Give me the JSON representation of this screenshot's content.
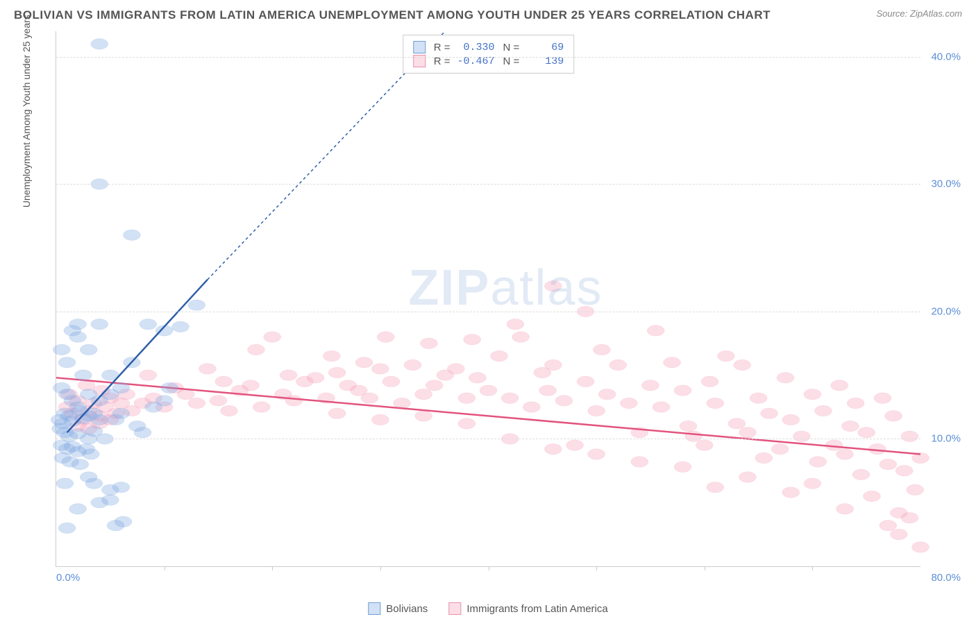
{
  "title": "BOLIVIAN VS IMMIGRANTS FROM LATIN AMERICA UNEMPLOYMENT AMONG YOUTH UNDER 25 YEARS CORRELATION CHART",
  "source": "Source: ZipAtlas.com",
  "ylabel": "Unemployment Among Youth under 25 years",
  "watermark_a": "ZIP",
  "watermark_b": "atlas",
  "chart": {
    "type": "scatter",
    "xlim": [
      0,
      80
    ],
    "ylim": [
      0,
      42
    ],
    "y_ticks": [
      10,
      20,
      30,
      40
    ],
    "y_tick_labels": [
      "10.0%",
      "20.0%",
      "30.0%",
      "40.0%"
    ],
    "x_ticks": [
      0,
      20,
      40,
      60,
      80
    ],
    "x_tick_labels_shown": {
      "first": "0.0%",
      "last": "80.0%"
    },
    "x_minor_ticks": [
      10,
      20,
      30,
      40,
      50,
      60,
      70
    ],
    "background_color": "#ffffff",
    "grid_color": "#dddddd",
    "axis_color": "#cccccc",
    "tick_label_color": "#5b8fd6",
    "series": [
      {
        "name": "Bolivians",
        "marker_fill": "rgba(130,170,225,0.35)",
        "marker_stroke": "#6f9fd8",
        "marker_radius": 8,
        "trend_color": "#2e5fa8",
        "trend_width": 2.5,
        "trend_solid": {
          "x1": 1,
          "y1": 10.5,
          "x2": 14,
          "y2": 22.5
        },
        "trend_dash": {
          "x1": 14,
          "y1": 22.5,
          "x2": 36,
          "y2": 42
        },
        "R": "0.330",
        "N": "69",
        "points": [
          [
            4,
            41
          ],
          [
            4,
            30
          ],
          [
            7,
            26
          ],
          [
            2,
            19
          ],
          [
            1.5,
            18.5
          ],
          [
            0.5,
            17
          ],
          [
            2,
            18
          ],
          [
            3,
            17
          ],
          [
            4,
            19
          ],
          [
            8.5,
            19
          ],
          [
            10,
            18.5
          ],
          [
            11.5,
            18.8
          ],
          [
            13,
            20.5
          ],
          [
            7,
            16
          ],
          [
            5,
            15
          ],
          [
            2.5,
            15
          ],
          [
            1,
            16
          ],
          [
            0.5,
            14
          ],
          [
            1,
            13.5
          ],
          [
            1.5,
            13
          ],
          [
            2,
            12.5
          ],
          [
            0.8,
            12
          ],
          [
            1.2,
            11.8
          ],
          [
            2.2,
            12.2
          ],
          [
            0.3,
            11.5
          ],
          [
            0.6,
            11.2
          ],
          [
            1.5,
            11.4
          ],
          [
            2.5,
            11.6
          ],
          [
            3,
            11.8
          ],
          [
            3.5,
            12
          ],
          [
            4,
            11.5
          ],
          [
            0.4,
            10.8
          ],
          [
            0.8,
            10.5
          ],
          [
            1.2,
            10.2
          ],
          [
            2,
            10.4
          ],
          [
            3,
            10
          ],
          [
            3.5,
            10.6
          ],
          [
            4.5,
            10
          ],
          [
            0.5,
            9.5
          ],
          [
            1,
            9.2
          ],
          [
            1.5,
            9.4
          ],
          [
            2,
            9
          ],
          [
            2.8,
            9.2
          ],
          [
            3.2,
            8.8
          ],
          [
            0.6,
            8.5
          ],
          [
            1.3,
            8.2
          ],
          [
            2.2,
            8
          ],
          [
            3,
            13.5
          ],
          [
            4,
            13
          ],
          [
            5,
            13.5
          ],
          [
            6,
            14
          ],
          [
            3,
            7
          ],
          [
            3.5,
            6.5
          ],
          [
            5,
            6
          ],
          [
            0.8,
            6.5
          ],
          [
            2,
            4.5
          ],
          [
            4,
            5
          ],
          [
            5,
            5.2
          ],
          [
            6,
            6.2
          ],
          [
            1,
            3
          ],
          [
            5.5,
            3.2
          ],
          [
            6.2,
            3.5
          ],
          [
            9,
            12.5
          ],
          [
            10,
            13
          ],
          [
            7.5,
            11
          ],
          [
            8,
            10.5
          ],
          [
            6,
            12
          ],
          [
            5.5,
            11.5
          ],
          [
            10.5,
            14
          ]
        ]
      },
      {
        "name": "Immigrants from Latin America",
        "marker_fill": "rgba(245,160,185,0.35)",
        "marker_stroke": "#e990ad",
        "marker_radius": 8,
        "trend_color": "#e3537e",
        "trend_width": 2.5,
        "trend_solid": {
          "x1": 0,
          "y1": 14.8,
          "x2": 80,
          "y2": 8.8
        },
        "R": "-0.467",
        "N": "139",
        "points": [
          [
            1,
            12.5
          ],
          [
            1.5,
            12
          ],
          [
            2,
            13
          ],
          [
            2.5,
            11.5
          ],
          [
            3,
            12.2
          ],
          [
            3.5,
            12.8
          ],
          [
            4,
            11.8
          ],
          [
            4.5,
            12.5
          ],
          [
            5,
            13.2
          ],
          [
            5.5,
            12
          ],
          [
            6,
            12.8
          ],
          [
            6.5,
            13.5
          ],
          [
            7,
            12.2
          ],
          [
            8,
            12.8
          ],
          [
            8.5,
            15
          ],
          [
            9,
            13.2
          ],
          [
            10,
            12.5
          ],
          [
            11,
            14
          ],
          [
            12,
            13.5
          ],
          [
            13,
            12.8
          ],
          [
            14,
            15.5
          ],
          [
            15,
            13
          ],
          [
            15.5,
            14.5
          ],
          [
            16,
            12.2
          ],
          [
            17,
            13.8
          ],
          [
            18,
            14.2
          ],
          [
            18.5,
            17
          ],
          [
            19,
            12.5
          ],
          [
            20,
            18
          ],
          [
            21,
            13.5
          ],
          [
            21.5,
            15
          ],
          [
            22,
            13
          ],
          [
            23,
            14.5
          ],
          [
            24,
            14.8
          ],
          [
            25,
            13.2
          ],
          [
            25.5,
            16.5
          ],
          [
            26,
            15.2
          ],
          [
            27,
            14.2
          ],
          [
            28,
            13.8
          ],
          [
            28.5,
            16
          ],
          [
            29,
            13.2
          ],
          [
            30,
            15.5
          ],
          [
            30.5,
            18
          ],
          [
            31,
            14.5
          ],
          [
            32,
            12.8
          ],
          [
            33,
            15.8
          ],
          [
            34,
            13.5
          ],
          [
            34.5,
            17.5
          ],
          [
            35,
            14.2
          ],
          [
            36,
            15
          ],
          [
            37,
            15.5
          ],
          [
            38,
            13.2
          ],
          [
            38.5,
            17.8
          ],
          [
            39,
            14.8
          ],
          [
            40,
            13.8
          ],
          [
            41,
            16.5
          ],
          [
            42,
            13.2
          ],
          [
            42.5,
            19
          ],
          [
            43,
            18
          ],
          [
            44,
            12.5
          ],
          [
            45,
            15.2
          ],
          [
            45.5,
            13.8
          ],
          [
            46,
            15.8
          ],
          [
            46,
            22
          ],
          [
            47,
            13
          ],
          [
            48,
            9.5
          ],
          [
            49,
            14.5
          ],
          [
            49,
            20
          ],
          [
            50,
            12.2
          ],
          [
            50.5,
            17
          ],
          [
            51,
            13.5
          ],
          [
            52,
            15.8
          ],
          [
            53,
            12.8
          ],
          [
            54,
            10.5
          ],
          [
            55,
            14.2
          ],
          [
            55.5,
            18.5
          ],
          [
            56,
            12.5
          ],
          [
            57,
            16
          ],
          [
            58,
            13.8
          ],
          [
            58.5,
            11
          ],
          [
            59,
            10.2
          ],
          [
            60,
            9.5
          ],
          [
            60.5,
            14.5
          ],
          [
            61,
            12.8
          ],
          [
            62,
            16.5
          ],
          [
            63,
            11.2
          ],
          [
            63.5,
            15.8
          ],
          [
            64,
            10.5
          ],
          [
            65,
            13.2
          ],
          [
            65.5,
            8.5
          ],
          [
            66,
            12
          ],
          [
            67,
            9.2
          ],
          [
            67.5,
            14.8
          ],
          [
            68,
            11.5
          ],
          [
            69,
            10.2
          ],
          [
            70,
            13.5
          ],
          [
            70,
            6.5
          ],
          [
            70.5,
            8.2
          ],
          [
            71,
            12.2
          ],
          [
            72,
            9.5
          ],
          [
            72.5,
            14.2
          ],
          [
            73,
            8.8
          ],
          [
            73.5,
            11
          ],
          [
            74,
            12.8
          ],
          [
            74.5,
            7.2
          ],
          [
            75,
            10.5
          ],
          [
            75.5,
            5.5
          ],
          [
            76,
            9.2
          ],
          [
            76.5,
            13.2
          ],
          [
            77,
            8
          ],
          [
            77.5,
            11.8
          ],
          [
            78,
            4.2
          ],
          [
            78.5,
            7.5
          ],
          [
            79,
            10.2
          ],
          [
            79.5,
            6
          ],
          [
            80,
            8.5
          ],
          [
            78,
            2.5
          ],
          [
            79,
            3.8
          ],
          [
            80,
            1.5
          ],
          [
            77,
            3.2
          ],
          [
            73,
            4.5
          ],
          [
            68,
            5.8
          ],
          [
            64,
            7
          ],
          [
            61,
            6.2
          ],
          [
            58,
            7.8
          ],
          [
            54,
            8.2
          ],
          [
            50,
            8.8
          ],
          [
            46,
            9.2
          ],
          [
            42,
            10
          ],
          [
            2,
            11
          ],
          [
            3,
            10.8
          ],
          [
            4,
            11.2
          ],
          [
            5,
            11.5
          ],
          [
            1.2,
            13.5
          ],
          [
            2.8,
            14.2
          ],
          [
            4.2,
            13.8
          ],
          [
            38,
            11.2
          ],
          [
            34,
            11.8
          ],
          [
            30,
            11.5
          ],
          [
            26,
            12
          ]
        ]
      }
    ]
  },
  "stats_labels": {
    "R": "R =",
    "N": "N ="
  },
  "legend": {
    "series1": "Bolivians",
    "series2": "Immigrants from Latin America"
  }
}
